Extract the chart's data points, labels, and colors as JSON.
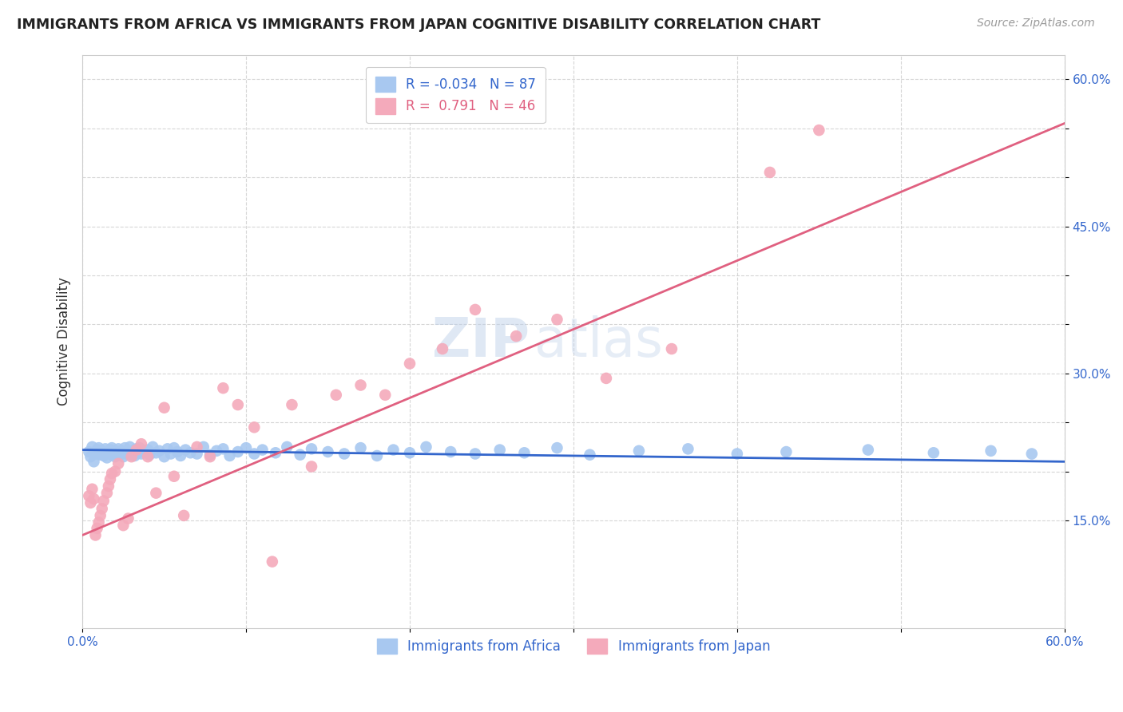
{
  "title": "IMMIGRANTS FROM AFRICA VS IMMIGRANTS FROM JAPAN COGNITIVE DISABILITY CORRELATION CHART",
  "source": "Source: ZipAtlas.com",
  "ylabel": "Cognitive Disability",
  "x_range": [
    0.0,
    0.6
  ],
  "y_range": [
    0.04,
    0.625
  ],
  "blue_R": -0.034,
  "blue_N": 87,
  "pink_R": 0.791,
  "pink_N": 46,
  "blue_color": "#A8C8F0",
  "pink_color": "#F4AABB",
  "blue_line_color": "#3366CC",
  "pink_line_color": "#E06080",
  "watermark_top": "ZIP",
  "watermark_bot": "atlas",
  "legend_label_blue": "Immigrants from Africa",
  "legend_label_pink": "Immigrants from Japan",
  "blue_scatter_x": [
    0.004,
    0.005,
    0.006,
    0.007,
    0.008,
    0.009,
    0.01,
    0.01,
    0.011,
    0.012,
    0.013,
    0.014,
    0.015,
    0.015,
    0.016,
    0.017,
    0.018,
    0.018,
    0.019,
    0.02,
    0.02,
    0.021,
    0.022,
    0.023,
    0.024,
    0.025,
    0.025,
    0.026,
    0.027,
    0.028,
    0.029,
    0.03,
    0.031,
    0.032,
    0.033,
    0.034,
    0.035,
    0.036,
    0.038,
    0.04,
    0.041,
    0.043,
    0.045,
    0.047,
    0.05,
    0.052,
    0.054,
    0.056,
    0.058,
    0.06,
    0.063,
    0.066,
    0.07,
    0.074,
    0.078,
    0.082,
    0.086,
    0.09,
    0.095,
    0.1,
    0.105,
    0.11,
    0.118,
    0.125,
    0.133,
    0.14,
    0.15,
    0.16,
    0.17,
    0.18,
    0.19,
    0.2,
    0.21,
    0.225,
    0.24,
    0.255,
    0.27,
    0.29,
    0.31,
    0.34,
    0.37,
    0.4,
    0.43,
    0.48,
    0.52,
    0.555,
    0.58
  ],
  "blue_scatter_y": [
    0.22,
    0.215,
    0.225,
    0.21,
    0.218,
    0.222,
    0.219,
    0.224,
    0.217,
    0.221,
    0.216,
    0.223,
    0.22,
    0.214,
    0.218,
    0.222,
    0.217,
    0.224,
    0.219,
    0.215,
    0.221,
    0.218,
    0.223,
    0.217,
    0.221,
    0.215,
    0.219,
    0.224,
    0.218,
    0.22,
    0.225,
    0.217,
    0.221,
    0.216,
    0.223,
    0.219,
    0.224,
    0.218,
    0.22,
    0.222,
    0.217,
    0.225,
    0.219,
    0.221,
    0.215,
    0.223,
    0.218,
    0.224,
    0.22,
    0.216,
    0.222,
    0.219,
    0.218,
    0.225,
    0.217,
    0.221,
    0.223,
    0.216,
    0.22,
    0.224,
    0.218,
    0.222,
    0.219,
    0.225,
    0.217,
    0.223,
    0.22,
    0.218,
    0.224,
    0.216,
    0.222,
    0.219,
    0.225,
    0.22,
    0.218,
    0.222,
    0.219,
    0.224,
    0.217,
    0.221,
    0.223,
    0.218,
    0.22,
    0.222,
    0.219,
    0.221,
    0.218
  ],
  "pink_scatter_x": [
    0.004,
    0.005,
    0.006,
    0.007,
    0.008,
    0.009,
    0.01,
    0.011,
    0.012,
    0.013,
    0.015,
    0.016,
    0.017,
    0.018,
    0.02,
    0.022,
    0.025,
    0.028,
    0.03,
    0.033,
    0.036,
    0.04,
    0.045,
    0.05,
    0.056,
    0.062,
    0.07,
    0.078,
    0.086,
    0.095,
    0.105,
    0.116,
    0.128,
    0.14,
    0.155,
    0.17,
    0.185,
    0.2,
    0.22,
    0.24,
    0.265,
    0.29,
    0.32,
    0.36,
    0.42,
    0.45
  ],
  "pink_scatter_y": [
    0.175,
    0.168,
    0.182,
    0.172,
    0.135,
    0.142,
    0.148,
    0.155,
    0.162,
    0.17,
    0.178,
    0.185,
    0.192,
    0.198,
    0.2,
    0.208,
    0.145,
    0.152,
    0.215,
    0.222,
    0.228,
    0.215,
    0.178,
    0.265,
    0.195,
    0.155,
    0.225,
    0.215,
    0.285,
    0.268,
    0.245,
    0.108,
    0.268,
    0.205,
    0.278,
    0.288,
    0.278,
    0.31,
    0.325,
    0.365,
    0.338,
    0.355,
    0.295,
    0.325,
    0.505,
    0.548
  ],
  "blue_line_y_at_0": 0.222,
  "blue_line_y_at_60": 0.21,
  "pink_line_y_at_0": 0.135,
  "pink_line_y_at_60": 0.555
}
